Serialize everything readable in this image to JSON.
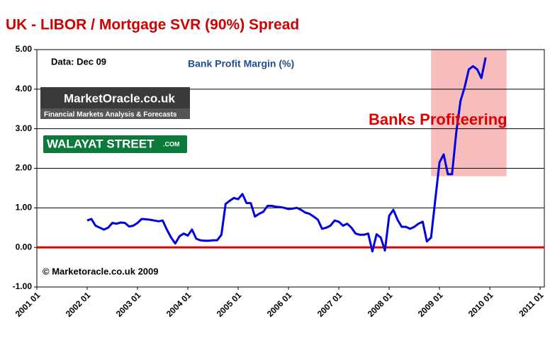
{
  "chart_data": {
    "type": "line",
    "title": "UK  - LIBOR / Mortgage SVR (90%) Spread",
    "subtitle": "Bank Profit Margin (%)",
    "annotations": [
      "Data: Dec  09",
      "Banks Profiteering",
      "© Marketoracle.co.uk  2009"
    ],
    "logos": [
      "MarketOracle.co.uk",
      "Financial Markets Analysis & Forecasts",
      "WALAYAT STREET",
      ".COM"
    ],
    "color": "#0000e0",
    "zero_line_color": "#e00000",
    "highlight": {
      "x": [
        "2008 11",
        "2010 05"
      ],
      "y": [
        1.8,
        5.0
      ],
      "color": "#f7bcbc"
    },
    "grid": true,
    "xlim": [
      "2001 01",
      "2011 02"
    ],
    "xticks": [
      "2001 01",
      "2002 01",
      "2003 01",
      "2004 01",
      "2005 01",
      "2006 01",
      "2007 01",
      "2008 01",
      "2009 01",
      "2010 01",
      "2011 01"
    ],
    "ylim": [
      -1,
      5
    ],
    "yticks": [
      {
        "value": -1,
        "label": "-1.00"
      },
      {
        "value": 0,
        "label": "0.00"
      },
      {
        "value": 1,
        "label": "1.00"
      },
      {
        "value": 2,
        "label": "2.00"
      },
      {
        "value": 3,
        "label": "3.00"
      },
      {
        "value": 4,
        "label": "4.00"
      },
      {
        "value": 5,
        "label": "5.00"
      }
    ],
    "x": [
      "2002 01",
      "2002 02",
      "2002 03",
      "2002 04",
      "2002 05",
      "2002 06",
      "2002 07",
      "2002 08",
      "2002 09",
      "2002 10",
      "2002 11",
      "2002 12",
      "2003 01",
      "2003 02",
      "2003 03",
      "2003 04",
      "2003 05",
      "2003 06",
      "2003 07",
      "2003 08",
      "2003 09",
      "2003 10",
      "2003 11",
      "2003 12",
      "2004 01",
      "2004 02",
      "2004 03",
      "2004 04",
      "2004 05",
      "2004 06",
      "2004 07",
      "2004 08",
      "2004 09",
      "2004 10",
      "2004 11",
      "2004 12",
      "2005 01",
      "2005 02",
      "2005 03",
      "2005 04",
      "2005 05",
      "2005 06",
      "2005 07",
      "2005 08",
      "2005 09",
      "2005 10",
      "2005 11",
      "2005 12",
      "2006 01",
      "2006 02",
      "2006 03",
      "2006 04",
      "2006 05",
      "2006 06",
      "2006 07",
      "2006 08",
      "2006 09",
      "2006 10",
      "2006 11",
      "2006 12",
      "2007 01",
      "2007 02",
      "2007 03",
      "2007 04",
      "2007 05",
      "2007 06",
      "2007 07",
      "2007 08",
      "2007 09",
      "2007 10",
      "2007 11",
      "2007 12",
      "2008 01",
      "2008 02",
      "2008 03",
      "2008 04",
      "2008 05",
      "2008 06",
      "2008 07",
      "2008 08",
      "2008 09",
      "2008 10",
      "2008 11",
      "2008 12",
      "2009 01",
      "2009 02",
      "2009 03",
      "2009 04",
      "2009 05",
      "2009 06",
      "2009 07",
      "2009 08",
      "2009 09",
      "2009 10",
      "2009 11",
      "2009 12"
    ],
    "values": [
      0.68,
      0.72,
      0.55,
      0.5,
      0.45,
      0.5,
      0.62,
      0.6,
      0.63,
      0.62,
      0.53,
      0.55,
      0.62,
      0.72,
      0.71,
      0.7,
      0.68,
      0.66,
      0.68,
      0.45,
      0.25,
      0.1,
      0.28,
      0.35,
      0.3,
      0.45,
      0.22,
      0.18,
      0.17,
      0.17,
      0.18,
      0.18,
      0.32,
      1.1,
      1.18,
      1.25,
      1.22,
      1.35,
      1.12,
      1.12,
      0.78,
      0.85,
      0.9,
      1.05,
      1.05,
      1.03,
      1.02,
      1.0,
      0.97,
      0.98,
      1.0,
      0.95,
      0.88,
      0.85,
      0.78,
      0.7,
      0.47,
      0.5,
      0.55,
      0.68,
      0.65,
      0.55,
      0.6,
      0.5,
      0.35,
      0.32,
      0.32,
      0.35,
      -0.1,
      0.33,
      0.25,
      -0.08,
      0.8,
      0.95,
      0.7,
      0.52,
      0.52,
      0.47,
      0.52,
      0.6,
      0.65,
      0.15,
      0.25,
      1.2,
      2.15,
      2.35,
      1.85,
      1.85,
      2.9,
      3.7,
      4.05,
      4.5,
      4.58,
      4.5,
      4.28,
      4.8
    ]
  }
}
